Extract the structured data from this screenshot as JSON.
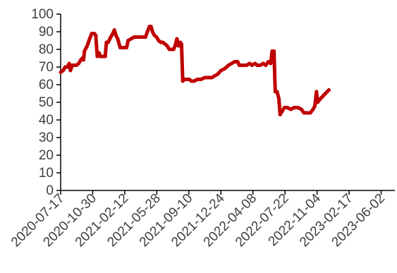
{
  "colors": {
    "series": "#c00000",
    "axis": "#000000",
    "tick_text": "#404040"
  },
  "chart_data": {
    "type": "line",
    "title": "",
    "xlabel": "",
    "ylabel": "",
    "ylim": [
      0,
      100
    ],
    "yticks": [
      0,
      10,
      20,
      30,
      40,
      50,
      60,
      70,
      80,
      90,
      100
    ],
    "xlim": [
      "2020-07-17",
      "2023-07-17"
    ],
    "xticks": [
      "2020-07-17",
      "2020-10-30",
      "2021-02-12",
      "2021-05-28",
      "2021-09-10",
      "2021-12-24",
      "2022-04-08",
      "2022-07-22",
      "2022-11-04",
      "2023-02-17",
      "2023-06-02"
    ],
    "grid": false,
    "legend": "none",
    "series": [
      {
        "points": [
          [
            "2020-07-17",
            67
          ],
          [
            "2020-07-25",
            68
          ],
          [
            "2020-08-01",
            70
          ],
          [
            "2020-08-08",
            70
          ],
          [
            "2020-08-14",
            72
          ],
          [
            "2020-08-18",
            68
          ],
          [
            "2020-08-24",
            71
          ],
          [
            "2020-09-07",
            71
          ],
          [
            "2020-09-14",
            72
          ],
          [
            "2020-09-21",
            74
          ],
          [
            "2020-09-26",
            75
          ],
          [
            "2020-09-30",
            74
          ],
          [
            "2020-10-03",
            79
          ],
          [
            "2020-10-12",
            82
          ],
          [
            "2020-10-20",
            86
          ],
          [
            "2020-10-27",
            89
          ],
          [
            "2020-11-04",
            89
          ],
          [
            "2020-11-09",
            88
          ],
          [
            "2020-11-14",
            76
          ],
          [
            "2020-11-20",
            78
          ],
          [
            "2020-11-24",
            76
          ],
          [
            "2020-12-10",
            76
          ],
          [
            "2020-12-14",
            84
          ],
          [
            "2020-12-20",
            84
          ],
          [
            "2020-12-28",
            87
          ],
          [
            "2021-01-04",
            89
          ],
          [
            "2021-01-09",
            91
          ],
          [
            "2021-01-14",
            88
          ],
          [
            "2021-01-20",
            86
          ],
          [
            "2021-01-28",
            81
          ],
          [
            "2021-02-08",
            81
          ],
          [
            "2021-02-18",
            81
          ],
          [
            "2021-02-23",
            85
          ],
          [
            "2021-03-05",
            86
          ],
          [
            "2021-03-15",
            87
          ],
          [
            "2021-03-28",
            87
          ],
          [
            "2021-04-10",
            87
          ],
          [
            "2021-04-21",
            87
          ],
          [
            "2021-04-27",
            90
          ],
          [
            "2021-05-04",
            93
          ],
          [
            "2021-05-09",
            93
          ],
          [
            "2021-05-14",
            90
          ],
          [
            "2021-05-20",
            88
          ],
          [
            "2021-05-27",
            87
          ],
          [
            "2021-06-03",
            85
          ],
          [
            "2021-06-10",
            84
          ],
          [
            "2021-06-17",
            84
          ],
          [
            "2021-06-24",
            83
          ],
          [
            "2021-07-01",
            82
          ],
          [
            "2021-07-08",
            80
          ],
          [
            "2021-07-15",
            80
          ],
          [
            "2021-07-22",
            80
          ],
          [
            "2021-07-27",
            82
          ],
          [
            "2021-08-02",
            86
          ],
          [
            "2021-08-07",
            82
          ],
          [
            "2021-08-13",
            84
          ],
          [
            "2021-08-17",
            83
          ],
          [
            "2021-08-21",
            62
          ],
          [
            "2021-08-27",
            63
          ],
          [
            "2021-09-05",
            63
          ],
          [
            "2021-09-12",
            63
          ],
          [
            "2021-09-18",
            62
          ],
          [
            "2021-09-27",
            62
          ],
          [
            "2021-10-08",
            63
          ],
          [
            "2021-10-20",
            63
          ],
          [
            "2021-11-01",
            64
          ],
          [
            "2021-11-12",
            64
          ],
          [
            "2021-11-24",
            64
          ],
          [
            "2021-12-04",
            65
          ],
          [
            "2021-12-14",
            66
          ],
          [
            "2021-12-24",
            68
          ],
          [
            "2022-01-05",
            69
          ],
          [
            "2022-01-18",
            71
          ],
          [
            "2022-01-28",
            72
          ],
          [
            "2022-02-07",
            73
          ],
          [
            "2022-02-17",
            73
          ],
          [
            "2022-02-22",
            71
          ],
          [
            "2022-03-04",
            71
          ],
          [
            "2022-03-18",
            71
          ],
          [
            "2022-03-28",
            72
          ],
          [
            "2022-04-05",
            71
          ],
          [
            "2022-04-15",
            72
          ],
          [
            "2022-04-22",
            71
          ],
          [
            "2022-05-02",
            71
          ],
          [
            "2022-05-12",
            72
          ],
          [
            "2022-05-20",
            71
          ],
          [
            "2022-05-28",
            73
          ],
          [
            "2022-06-05",
            72
          ],
          [
            "2022-06-10",
            79
          ],
          [
            "2022-06-16",
            79
          ],
          [
            "2022-06-20",
            56
          ],
          [
            "2022-06-26",
            56
          ],
          [
            "2022-07-02",
            52
          ],
          [
            "2022-07-06",
            43
          ],
          [
            "2022-07-13",
            45
          ],
          [
            "2022-07-20",
            47
          ],
          [
            "2022-07-30",
            47
          ],
          [
            "2022-08-10",
            46
          ],
          [
            "2022-08-21",
            47
          ],
          [
            "2022-09-02",
            47
          ],
          [
            "2022-09-14",
            46
          ],
          [
            "2022-09-22",
            44
          ],
          [
            "2022-10-03",
            44
          ],
          [
            "2022-10-13",
            44
          ],
          [
            "2022-10-22",
            46
          ],
          [
            "2022-10-28",
            48
          ],
          [
            "2022-11-02",
            56
          ],
          [
            "2022-11-06",
            50
          ],
          [
            "2022-11-15",
            52
          ],
          [
            "2022-11-26",
            54
          ],
          [
            "2022-12-07",
            56
          ],
          [
            "2022-12-13",
            57
          ]
        ]
      }
    ]
  }
}
